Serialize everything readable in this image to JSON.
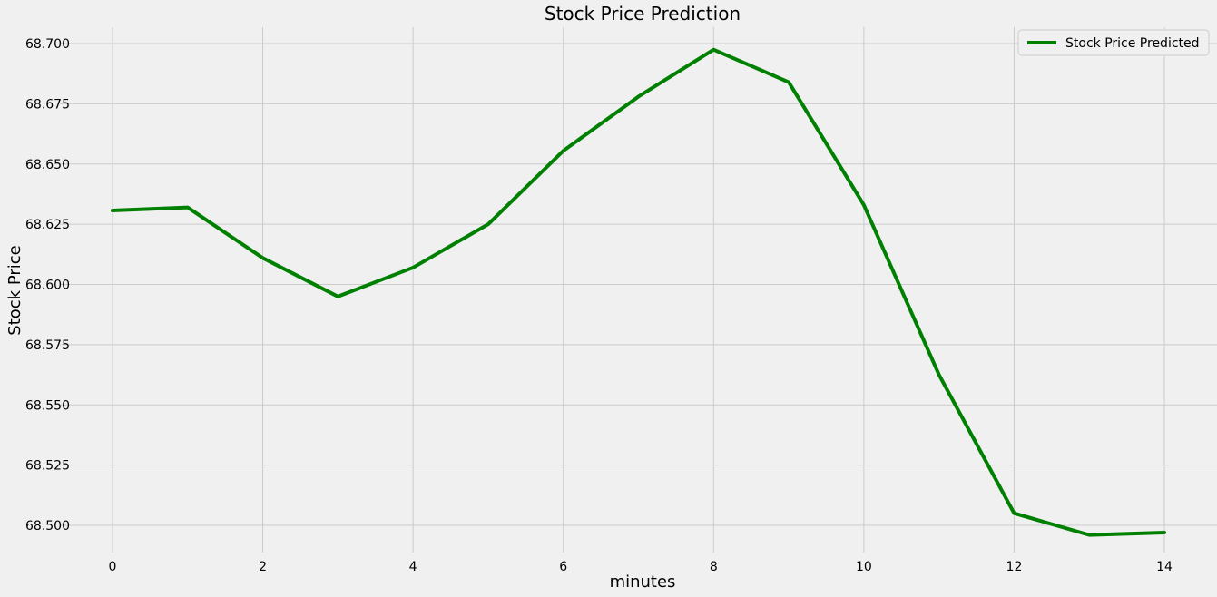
{
  "chart_data": {
    "type": "line",
    "title": "Stock Price Prediction",
    "xlabel": "minutes",
    "ylabel": "Stock Price",
    "x": [
      0,
      1,
      2,
      3,
      4,
      5,
      6,
      7,
      8,
      9,
      10,
      11,
      12,
      13,
      14
    ],
    "series": [
      {
        "name": "Stock Price Predicted",
        "color": "#008000",
        "values": [
          68.6307,
          68.632,
          68.611,
          68.595,
          68.607,
          68.625,
          68.6555,
          68.678,
          68.6975,
          68.684,
          68.633,
          68.5625,
          68.505,
          68.496,
          68.497
        ]
      }
    ],
    "xlim": [
      -0.7,
      14.7
    ],
    "ylim": [
      68.4887,
      68.7068
    ],
    "xticks": [
      0,
      2,
      4,
      6,
      8,
      10,
      12,
      14
    ],
    "xtick_labels": [
      "0",
      "2",
      "4",
      "6",
      "8",
      "10",
      "12",
      "14"
    ],
    "yticks": [
      68.5,
      68.525,
      68.55,
      68.575,
      68.6,
      68.625,
      68.65,
      68.675,
      68.7
    ],
    "ytick_labels": [
      "68.500",
      "68.525",
      "68.550",
      "68.575",
      "68.600",
      "68.625",
      "68.650",
      "68.675",
      "68.700"
    ],
    "grid": true,
    "legend_position": "top-right",
    "background_color": "#f0f0f0"
  }
}
